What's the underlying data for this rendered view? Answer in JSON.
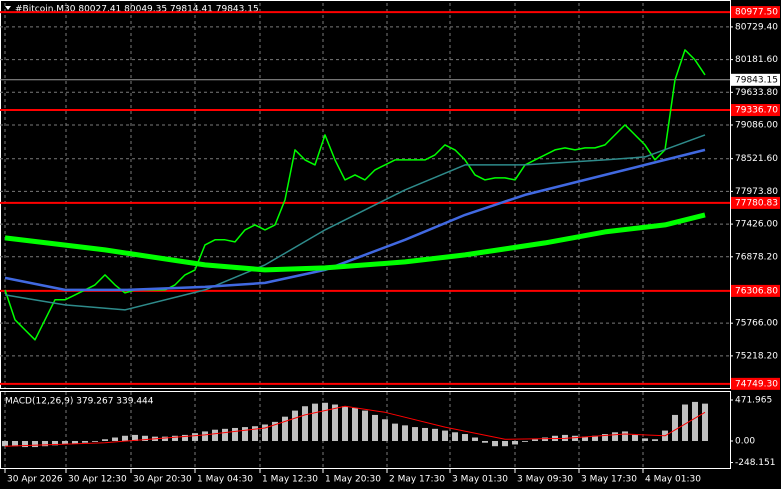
{
  "chart_data": [
    {
      "type": "price",
      "title": "#Bitcoin,M30  80027.41 80049.35 79814.41 79843.15",
      "xlim": [
        -0.5,
        72.5
      ],
      "xticks": [
        {
          "value": 0,
          "label": "30 Apr 2026"
        },
        {
          "value": 6.1,
          "label": "30 Apr 12:30"
        },
        {
          "value": 12.6,
          "label": "30 Apr 20:30"
        },
        {
          "value": 19,
          "label": "1 May 04:30"
        },
        {
          "value": 25.5,
          "label": "1 May 12:30"
        },
        {
          "value": 31.8,
          "label": "1 May 20:30"
        },
        {
          "value": 38.2,
          "label": "2 May 17:30"
        },
        {
          "value": 44.5,
          "label": "3 May 01:30"
        },
        {
          "value": 51,
          "label": "3 May 09:30"
        },
        {
          "value": 57.4,
          "label": "3 May 17:30"
        },
        {
          "value": 63.8,
          "label": "4 May 01:30"
        }
      ],
      "ylim": [
        74680,
        81130
      ],
      "yticks": [
        {
          "value": 80729.4,
          "label": "80729.40"
        },
        {
          "value": 80181.6,
          "label": "80181.60"
        },
        {
          "value": 79633.8,
          "label": "79633.80"
        },
        {
          "value": 79086,
          "label": "79086.00"
        },
        {
          "value": 78521.6,
          "label": "78521.60"
        },
        {
          "value": 77973.8,
          "label": "77973.80"
        },
        {
          "value": 77426,
          "label": "77426.00"
        },
        {
          "value": 76878.2,
          "label": "76878.20"
        },
        {
          "value": 75766,
          "label": "75766.00"
        },
        {
          "value": 75218.2,
          "label": "75218.20"
        }
      ],
      "grid": true,
      "levels": [
        {
          "value": 80977.5,
          "label": "80977.50"
        },
        {
          "value": 79336.7,
          "label": "79336.70"
        },
        {
          "value": 77780.83,
          "label": "77780.83"
        },
        {
          "value": 76306.8,
          "label": "76306.80"
        },
        {
          "value": 74749.3,
          "label": "74749.30"
        }
      ],
      "level_color": "#ff0000",
      "current_price": 79843.15,
      "series": [
        {
          "color": "#00ff00",
          "values": [
            76324,
            75822,
            75654,
            75487,
            75822,
            76157,
            76157,
            76240,
            76324,
            76408,
            76575,
            76408,
            76274,
            76324,
            76324,
            76324,
            76324,
            76408,
            76575,
            76659,
            77078,
            77162,
            77162,
            77128,
            77329,
            77413,
            77329,
            77413,
            77832,
            78669,
            78502,
            78418,
            78920,
            78502,
            78167,
            78250,
            78167,
            78334,
            78418,
            78502,
            78502,
            78502,
            78502,
            78585,
            78753,
            78669,
            78502,
            78250,
            78167,
            78200,
            78200,
            78167,
            78418,
            78502,
            78585,
            78669,
            78703,
            78669,
            78703,
            78703,
            78753,
            78920,
            79088,
            78920,
            78753,
            78502,
            78669,
            79842,
            80344,
            80177,
            79925
          ]
        },
        {
          "color": "#2e8b8b",
          "x": [
            0,
            6,
            12,
            20,
            26,
            32,
            40,
            46,
            52,
            60,
            64,
            70
          ],
          "values": [
            76240,
            76073,
            75989,
            76324,
            76742,
            77329,
            77999,
            78418,
            78418,
            78502,
            78552,
            78920
          ]
        },
        {
          "color": "#4169e1",
          "x": [
            0,
            6,
            12,
            20,
            26,
            32,
            40,
            46,
            52,
            60,
            64,
            70
          ],
          "values": [
            76525,
            76324,
            76324,
            76374,
            76441,
            76659,
            77162,
            77580,
            77915,
            78250,
            78418,
            78669
          ]
        },
        {
          "color": "#00ff00",
          "x": [
            0,
            10,
            20,
            26,
            32,
            40,
            46,
            54,
            60,
            66,
            70
          ],
          "values": [
            77195,
            76994,
            76742,
            76659,
            76692,
            76793,
            76910,
            77111,
            77296,
            77413,
            77580
          ]
        }
      ]
    },
    {
      "type": "macd",
      "title": "MACD(12,26,9) 379.267 339.444",
      "xlim": [
        -0.5,
        72.5
      ],
      "ylim": [
        -311,
        564
      ],
      "yticks": [
        471.965,
        {
          "value": 0,
          "label": "0.00"
        },
        -248.151
      ],
      "series": [
        {
          "color": "#c0c0c0",
          "values": [
            -60,
            -60,
            -70,
            -70,
            -60,
            -50,
            -40,
            -30,
            -20,
            -10,
            20,
            40,
            60,
            70,
            60,
            50,
            50,
            60,
            70,
            90,
            110,
            130,
            140,
            150,
            160,
            170,
            190,
            220,
            280,
            350,
            400,
            430,
            440,
            420,
            400,
            380,
            350,
            300,
            250,
            200,
            180,
            160,
            150,
            140,
            120,
            100,
            80,
            40,
            -20,
            -60,
            -60,
            -40,
            -10,
            20,
            40,
            60,
            70,
            60,
            50,
            60,
            80,
            100,
            110,
            70,
            30,
            20,
            120,
            300,
            420,
            450,
            430
          ]
        },
        {
          "color": "#ff0000",
          "x": [
            0,
            10,
            20,
            26,
            30,
            34,
            38,
            44,
            50,
            56,
            62,
            66,
            70
          ],
          "values": [
            -60,
            -20,
            70,
            150,
            300,
            400,
            330,
            160,
            20,
            30,
            80,
            60,
            330
          ]
        }
      ]
    }
  ]
}
